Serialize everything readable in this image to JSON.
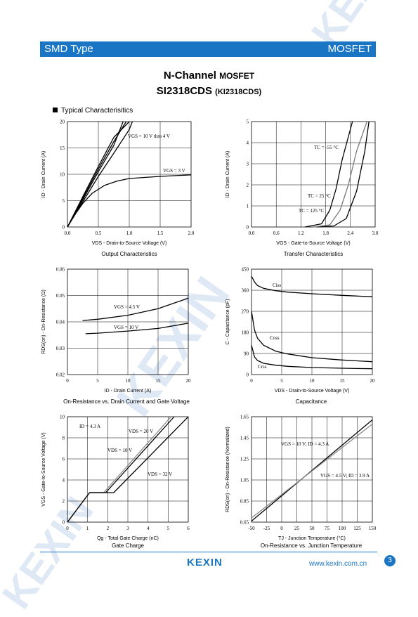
{
  "header": {
    "left": "SMD Type",
    "right": "MOSFET"
  },
  "title": {
    "main": "N-Channel",
    "main_small": "MOSFET",
    "part": "SI2318CDS",
    "part_alt": "(KI2318CDS)"
  },
  "section_label": "Typical  Characterisitics",
  "watermark": "KEXIN",
  "footer": {
    "logo": "KEXIN",
    "url": "www.kexin.com.cn",
    "page": "3"
  },
  "charts": [
    {
      "id": "output",
      "caption": "Output Characteristics",
      "xlabel": "VDS - Drain-to-Source Voltage (V)",
      "ylabel": "ID - Drain Current (A)",
      "xticks": [
        "0.0",
        "0.5",
        "1.0",
        "1.5",
        "2.0"
      ],
      "yticks": [
        "0",
        "5",
        "10",
        "15",
        "20"
      ],
      "annotations": [
        "VGS = 10 V thru 4 V",
        "VGS = 3 V"
      ]
    },
    {
      "id": "transfer",
      "caption": "Transfer Characteristics",
      "xlabel": "VGS - Gate-to-Source Voltage (V)",
      "ylabel": "ID - Drain Current (A)",
      "xticks": [
        "0.0",
        "0.6",
        "1.2",
        "1.8",
        "2.4",
        "3.0"
      ],
      "yticks": [
        "0",
        "1",
        "2",
        "3",
        "4",
        "5"
      ],
      "annotations": [
        "TC = -55 °C",
        "TC = 25 °C",
        "TC = 125 °C"
      ]
    },
    {
      "id": "onres",
      "caption": "On-Resistance vs. Drain Current and Gate Voltage",
      "xlabel": "ID - Drain Current (A)",
      "ylabel": "RDS(on) - On-Resistance (Ω)",
      "xticks": [
        "0",
        "5",
        "10",
        "15",
        "20"
      ],
      "yticks": [
        "0.02",
        "0.03",
        "0.04",
        "0.05",
        "0.06"
      ],
      "annotations": [
        "VGS = 4.5 V",
        "VGS = 10 V"
      ]
    },
    {
      "id": "cap",
      "caption": "Capacitance",
      "xlabel": "VDS - Drain-to-Source Voltage (V)",
      "ylabel": "C - Capacitance (pF)",
      "xticks": [
        "0",
        "5",
        "10",
        "15",
        "20"
      ],
      "yticks": [
        "0",
        "90",
        "180",
        "270",
        "360",
        "450"
      ],
      "annotations": [
        "Ciss",
        "Coss",
        "Crss"
      ]
    },
    {
      "id": "gate",
      "caption": "Gate Charge",
      "xlabel": "Qg - Total Gate Charge (nC)",
      "ylabel": "VGS - Gate-to-Source Voltage (V)",
      "xticks": [
        "0",
        "1",
        "2",
        "3",
        "4",
        "5",
        "6"
      ],
      "yticks": [
        "0",
        "2",
        "4",
        "6",
        "8",
        "10"
      ],
      "annotations": [
        "ID = 4.3 A",
        "VDS = 20 V",
        "VDS = 10 V",
        "VDS = 32 V"
      ]
    },
    {
      "id": "temp",
      "caption": "On-Resistance vs. Junction Temperature",
      "xlabel": "TJ - Junction Temperature (°C)",
      "ylabel": "RDS(on) - On-Resistance (Normalized)",
      "xticks": [
        "-50",
        "-25",
        "0",
        "25",
        "50",
        "75",
        "100",
        "125",
        "150"
      ],
      "yticks": [
        "0.65",
        "0.85",
        "1.05",
        "1.25",
        "1.45",
        "1.65"
      ],
      "annotations": [
        "VGS = 10 V; ID = 4.3 A",
        "VGS = 4.5 V; ID = 3.9 A"
      ]
    }
  ],
  "chart_data": [
    {
      "type": "line",
      "title": "Output Characteristics",
      "xlabel": "VDS - Drain-to-Source Voltage (V)",
      "ylabel": "ID - Drain Current (A)",
      "xlim": [
        0,
        2.0
      ],
      "ylim": [
        0,
        20
      ],
      "grid": true,
      "series": [
        {
          "name": "VGS = 10 V thru 4 V",
          "x": [
            0,
            0.25,
            0.5,
            0.75,
            1.0
          ],
          "y": [
            0,
            5.8,
            11.5,
            17,
            20
          ]
        },
        {
          "name": "VGS = 10 V thru 4 V",
          "x": [
            0,
            0.25,
            0.5,
            0.75,
            0.95
          ],
          "y": [
            0,
            5.5,
            11,
            16.2,
            20
          ]
        },
        {
          "name": "VGS = 10 V thru 4 V",
          "x": [
            0,
            0.25,
            0.5,
            0.75,
            0.9
          ],
          "y": [
            0,
            5.2,
            10.5,
            15.5,
            20
          ]
        },
        {
          "name": "VGS = 10 V thru 4 V",
          "x": [
            0,
            0.25,
            0.5,
            0.75,
            1.0,
            1.05
          ],
          "y": [
            0,
            4.8,
            9.6,
            14,
            18.5,
            20
          ]
        },
        {
          "name": "VGS = 3 V",
          "x": [
            0,
            0.1,
            0.25,
            0.4,
            0.6,
            0.8,
            1.0,
            1.5,
            2.0
          ],
          "y": [
            0,
            2.0,
            4.5,
            6.4,
            7.9,
            8.7,
            9.2,
            9.6,
            9.9
          ]
        }
      ]
    },
    {
      "type": "line",
      "title": "Transfer Characteristics",
      "xlabel": "VGS - Gate-to-Source Voltage (V)",
      "ylabel": "ID - Drain Current (A)",
      "xlim": [
        0,
        3.0
      ],
      "ylim": [
        0,
        5
      ],
      "grid": true,
      "series": [
        {
          "name": "TC = -55 °C",
          "x": [
            1.6,
            2.0,
            2.3,
            2.55,
            2.75,
            2.85
          ],
          "y": [
            0,
            0.05,
            0.4,
            1.7,
            3.6,
            5
          ]
        },
        {
          "name": "TC = 25 °C",
          "x": [
            1.5,
            1.9,
            2.15,
            2.35,
            2.55,
            2.8
          ],
          "y": [
            0,
            0.1,
            0.8,
            2.0,
            3.6,
            5
          ]
        },
        {
          "name": "TC = 125 °C",
          "x": [
            1.3,
            1.7,
            1.9,
            2.05,
            2.2,
            2.45
          ],
          "y": [
            0,
            0.15,
            0.8,
            1.8,
            3.2,
            5
          ]
        }
      ]
    },
    {
      "type": "line",
      "title": "On-Resistance vs. Drain Current and Gate Voltage",
      "xlabel": "ID - Drain Current (A)",
      "ylabel": "RDS(on) - On-Resistance (Ω)",
      "xlim": [
        0,
        20
      ],
      "ylim": [
        0.02,
        0.06
      ],
      "grid": true,
      "series": [
        {
          "name": "VGS = 4.5 V",
          "x": [
            2.5,
            5,
            10,
            15,
            20
          ],
          "y": [
            0.0405,
            0.041,
            0.0425,
            0.045,
            0.049
          ]
        },
        {
          "name": "VGS = 10 V",
          "x": [
            3,
            5,
            10,
            15,
            20
          ],
          "y": [
            0.0355,
            0.0357,
            0.0365,
            0.0375,
            0.0395
          ]
        }
      ]
    },
    {
      "type": "line",
      "title": "Capacitance",
      "xlabel": "VDS - Drain-to-Source Voltage (V)",
      "ylabel": "C - Capacitance (pF)",
      "xlim": [
        0,
        20
      ],
      "ylim": [
        0,
        450
      ],
      "grid": true,
      "series": [
        {
          "name": "Ciss",
          "x": [
            0,
            0.5,
            1,
            2,
            4,
            6,
            10,
            15,
            20
          ],
          "y": [
            420,
            395,
            380,
            368,
            358,
            352,
            345,
            338,
            332
          ]
        },
        {
          "name": "Coss",
          "x": [
            0,
            0.5,
            1,
            2,
            4,
            6,
            10,
            15,
            20
          ],
          "y": [
            270,
            190,
            155,
            125,
            100,
            88,
            72,
            62,
            55
          ]
        },
        {
          "name": "Crss",
          "x": [
            0,
            0.5,
            1,
            2,
            4,
            6,
            10,
            15,
            20
          ],
          "y": [
            125,
            75,
            60,
            48,
            40,
            35,
            30,
            27,
            25
          ]
        }
      ]
    },
    {
      "type": "line",
      "title": "Gate Charge",
      "xlabel": "Qg - Total Gate Charge (nC)",
      "ylabel": "VGS - Gate-to-Source Voltage (V)",
      "xlim": [
        0,
        6
      ],
      "ylim": [
        0,
        10
      ],
      "grid": true,
      "series": [
        {
          "name": "VDS = 20 V",
          "x": [
            0,
            1.1,
            1.9,
            5.3
          ],
          "y": [
            0,
            2.8,
            2.8,
            10
          ]
        },
        {
          "name": "VDS = 10 V",
          "x": [
            0,
            1.1,
            1.8,
            5.15
          ],
          "y": [
            0,
            2.8,
            2.8,
            10
          ]
        },
        {
          "name": "VDS = 32 V",
          "x": [
            0,
            1.1,
            2.3,
            6.0
          ],
          "y": [
            0,
            2.8,
            2.8,
            10
          ]
        }
      ]
    },
    {
      "type": "line",
      "title": "On-Resistance vs. Junction Temperature",
      "xlabel": "TJ - Junction Temperature (°C)",
      "ylabel": "RDS(on) - On-Resistance (Normalized)",
      "xlim": [
        -50,
        150
      ],
      "ylim": [
        0.65,
        1.65
      ],
      "grid": true,
      "series": [
        {
          "name": "VGS = 10 V; ID = 4.3 A",
          "x": [
            -50,
            150
          ],
          "y": [
            0.66,
            1.62
          ]
        },
        {
          "name": "VGS = 4.5 V; ID = 3.9 A",
          "x": [
            -50,
            150
          ],
          "y": [
            0.69,
            1.58
          ]
        }
      ]
    }
  ]
}
